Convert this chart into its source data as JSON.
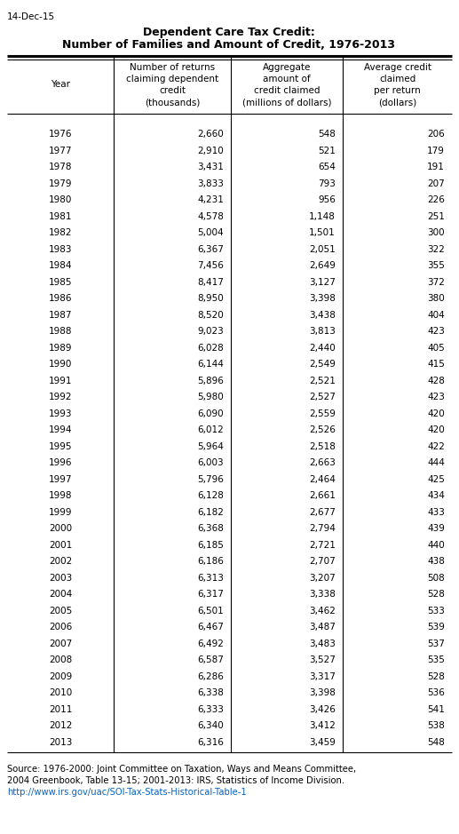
{
  "date_label": "14-Dec-15",
  "title_line1": "Dependent Care Tax Credit:",
  "title_line2": "Number of Families and Amount of Credit, 1976-2013",
  "col_headers": [
    "Year",
    "Number of returns\nclaiming dependent\ncredit\n(thousands)",
    "Aggregate\namount of\ncredit claimed\n(millions of dollars)",
    "Average credit\nclaimed\nper return\n(dollars)"
  ],
  "rows": [
    [
      "1976",
      "2,660",
      "548",
      "206"
    ],
    [
      "1977",
      "2,910",
      "521",
      "179"
    ],
    [
      "1978",
      "3,431",
      "654",
      "191"
    ],
    [
      "1979",
      "3,833",
      "793",
      "207"
    ],
    [
      "1980",
      "4,231",
      "956",
      "226"
    ],
    [
      "1981",
      "4,578",
      "1,148",
      "251"
    ],
    [
      "1982",
      "5,004",
      "1,501",
      "300"
    ],
    [
      "1983",
      "6,367",
      "2,051",
      "322"
    ],
    [
      "1984",
      "7,456",
      "2,649",
      "355"
    ],
    [
      "1985",
      "8,417",
      "3,127",
      "372"
    ],
    [
      "1986",
      "8,950",
      "3,398",
      "380"
    ],
    [
      "1987",
      "8,520",
      "3,438",
      "404"
    ],
    [
      "1988",
      "9,023",
      "3,813",
      "423"
    ],
    [
      "1989",
      "6,028",
      "2,440",
      "405"
    ],
    [
      "1990",
      "6,144",
      "2,549",
      "415"
    ],
    [
      "1991",
      "5,896",
      "2,521",
      "428"
    ],
    [
      "1992",
      "5,980",
      "2,527",
      "423"
    ],
    [
      "1993",
      "6,090",
      "2,559",
      "420"
    ],
    [
      "1994",
      "6,012",
      "2,526",
      "420"
    ],
    [
      "1995",
      "5,964",
      "2,518",
      "422"
    ],
    [
      "1996",
      "6,003",
      "2,663",
      "444"
    ],
    [
      "1997",
      "5,796",
      "2,464",
      "425"
    ],
    [
      "1998",
      "6,128",
      "2,661",
      "434"
    ],
    [
      "1999",
      "6,182",
      "2,677",
      "433"
    ],
    [
      "2000",
      "6,368",
      "2,794",
      "439"
    ],
    [
      "2001",
      "6,185",
      "2,721",
      "440"
    ],
    [
      "2002",
      "6,186",
      "2,707",
      "438"
    ],
    [
      "2003",
      "6,313",
      "3,207",
      "508"
    ],
    [
      "2004",
      "6,317",
      "3,338",
      "528"
    ],
    [
      "2005",
      "6,501",
      "3,462",
      "533"
    ],
    [
      "2006",
      "6,467",
      "3,487",
      "539"
    ],
    [
      "2007",
      "6,492",
      "3,483",
      "537"
    ],
    [
      "2008",
      "6,587",
      "3,527",
      "535"
    ],
    [
      "2009",
      "6,286",
      "3,317",
      "528"
    ],
    [
      "2010",
      "6,338",
      "3,398",
      "536"
    ],
    [
      "2011",
      "6,333",
      "3,426",
      "541"
    ],
    [
      "2012",
      "6,340",
      "3,412",
      "538"
    ],
    [
      "2013",
      "6,316",
      "3,459",
      "548"
    ]
  ],
  "source_text": "Source: 1976-2000: Joint Committee on Taxation, Ways and Means Committee,\n2004 Greenbook, Table 13-15; 2001-2013: IRS, Statistics of Income Division.",
  "link_text": "http://www.irs.gov/uac/SOI-Tax-Stats-Historical-Table-1",
  "bg_color": "#ffffff",
  "text_color": "#000000",
  "link_color": "#0563c1"
}
